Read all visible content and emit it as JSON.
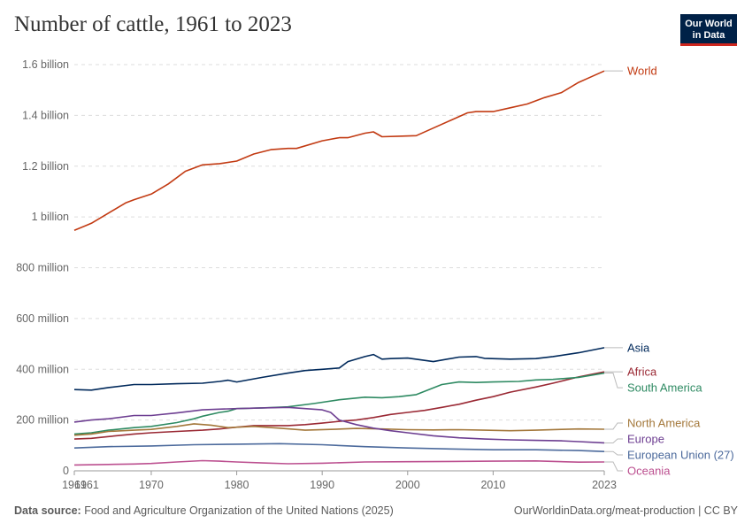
{
  "header": {
    "title": "Number of cattle, 1961 to 2023",
    "logo_line1": "Our World",
    "logo_line2": "in Data"
  },
  "footer": {
    "source_label": "Data source:",
    "source_text": "Food and Agriculture Organization of the United Nations (2025)",
    "link_text": "OurWorldinData.org/meat-production",
    "license_text": "| CC BY"
  },
  "chart_data": {
    "type": "line",
    "title": "Number of cattle, 1961 to 2023",
    "xlabel": "",
    "ylabel": "",
    "xlim": [
      1961,
      2023
    ],
    "ylim": [
      0,
      1600000000
    ],
    "x_ticks": [
      {
        "value": 1961,
        "label": "1961"
      },
      {
        "value": 1970,
        "label": "1970"
      },
      {
        "value": 1980,
        "label": "1980"
      },
      {
        "value": 1990,
        "label": "1990"
      },
      {
        "value": 2000,
        "label": "2000"
      },
      {
        "value": 2010,
        "label": "2010"
      },
      {
        "value": 2023,
        "label": "2023"
      }
    ],
    "x_edge_label": "1961",
    "y_ticks": [
      {
        "value": 0,
        "label": "0"
      },
      {
        "value": 200000000,
        "label": "200 million"
      },
      {
        "value": 400000000,
        "label": "400 million"
      },
      {
        "value": 600000000,
        "label": "600 million"
      },
      {
        "value": 800000000,
        "label": "800 million"
      },
      {
        "value": 1000000000,
        "label": "1 billion"
      },
      {
        "value": 1200000000,
        "label": "1.2 billion"
      },
      {
        "value": 1400000000,
        "label": "1.4 billion"
      },
      {
        "value": 1600000000,
        "label": "1.6 billion"
      }
    ],
    "grid": "horizontal dashed",
    "legend": "right, labels at line ends",
    "series": [
      {
        "name": "World",
        "color": "#c23a12",
        "x": [
          1961,
          1963,
          1965,
          1967,
          1968,
          1970,
          1972,
          1974,
          1976,
          1978,
          1980,
          1982,
          1984,
          1986,
          1987,
          1990,
          1992,
          1993,
          1995,
          1996,
          1997,
          1999,
          2001,
          2003,
          2005,
          2007,
          2008,
          2010,
          2012,
          2014,
          2016,
          2018,
          2020,
          2021,
          2023
        ],
        "y": [
          947,
          975,
          1015,
          1055,
          1068,
          1090,
          1130,
          1180,
          1205,
          1210,
          1220,
          1248,
          1265,
          1270,
          1270,
          1300,
          1312,
          1312,
          1330,
          1335,
          1316,
          1318,
          1320,
          1350,
          1380,
          1410,
          1415,
          1415,
          1430,
          1445,
          1470,
          1490,
          1530,
          1545,
          1575
        ]
      },
      {
        "name": "Asia",
        "color": "#00295b",
        "x": [
          1961,
          1963,
          1965,
          1968,
          1970,
          1973,
          1976,
          1978,
          1979,
          1980,
          1983,
          1986,
          1988,
          1990,
          1992,
          1993,
          1995,
          1996,
          1997,
          1998,
          2000,
          2003,
          2006,
          2008,
          2009,
          2012,
          2015,
          2017,
          2020,
          2023
        ],
        "y": [
          320,
          318,
          328,
          340,
          340,
          343,
          345,
          352,
          357,
          350,
          368,
          385,
          395,
          400,
          405,
          430,
          450,
          458,
          440,
          442,
          444,
          430,
          448,
          450,
          443,
          440,
          442,
          450,
          465,
          485
        ]
      },
      {
        "name": "Africa",
        "color": "#9a2934",
        "x": [
          1961,
          1963,
          1965,
          1968,
          1970,
          1973,
          1976,
          1978,
          1980,
          1982,
          1984,
          1986,
          1988,
          1990,
          1992,
          1994,
          1996,
          1998,
          2000,
          2002,
          2004,
          2006,
          2008,
          2010,
          2012,
          2015,
          2017,
          2020,
          2023
        ],
        "y": [
          125,
          128,
          135,
          145,
          150,
          155,
          160,
          165,
          172,
          178,
          178,
          178,
          182,
          188,
          195,
          200,
          210,
          222,
          230,
          238,
          250,
          262,
          278,
          292,
          310,
          330,
          345,
          370,
          390
        ]
      },
      {
        "name": "South America",
        "color": "#2e8a62",
        "x": [
          1961,
          1963,
          1965,
          1968,
          1970,
          1973,
          1975,
          1976,
          1978,
          1979,
          1980,
          1983,
          1986,
          1989,
          1992,
          1995,
          1997,
          1999,
          2001,
          2004,
          2006,
          2008,
          2010,
          2013,
          2015,
          2017,
          2020,
          2023
        ],
        "y": [
          145,
          150,
          160,
          170,
          175,
          190,
          205,
          215,
          230,
          235,
          245,
          248,
          252,
          265,
          280,
          290,
          288,
          292,
          300,
          340,
          350,
          348,
          350,
          352,
          358,
          360,
          368,
          385
        ]
      },
      {
        "name": "North America",
        "color": "#a3773a",
        "x": [
          1961,
          1963,
          1965,
          1968,
          1970,
          1973,
          1975,
          1977,
          1979,
          1982,
          1985,
          1988,
          1991,
          1994,
          1997,
          2000,
          2003,
          2006,
          2009,
          2012,
          2015,
          2018,
          2020,
          2023
        ],
        "y": [
          140,
          145,
          155,
          160,
          163,
          175,
          185,
          180,
          170,
          175,
          168,
          160,
          163,
          167,
          165,
          162,
          161,
          162,
          160,
          158,
          160,
          163,
          165,
          164
        ]
      },
      {
        "name": "Europe",
        "color": "#6d3e91",
        "x": [
          1961,
          1963,
          1965,
          1968,
          1970,
          1973,
          1976,
          1978,
          1980,
          1983,
          1986,
          1988,
          1990,
          1991,
          1992,
          1994,
          1996,
          1998,
          2000,
          2003,
          2006,
          2009,
          2012,
          2015,
          2018,
          2020,
          2023
        ],
        "y": [
          192,
          200,
          205,
          218,
          218,
          228,
          240,
          243,
          245,
          248,
          250,
          245,
          240,
          230,
          200,
          182,
          168,
          158,
          150,
          138,
          130,
          125,
          122,
          120,
          118,
          115,
          110
        ]
      },
      {
        "name": "European Union (27)",
        "color": "#4c6a9c",
        "x": [
          1961,
          1965,
          1970,
          1975,
          1980,
          1985,
          1990,
          1995,
          2000,
          2005,
          2010,
          2015,
          2020,
          2023
        ],
        "y": [
          90,
          95,
          98,
          103,
          105,
          107,
          103,
          95,
          90,
          86,
          83,
          83,
          80,
          76
        ]
      },
      {
        "name": "Oceania",
        "color": "#bc5090",
        "x": [
          1961,
          1965,
          1968,
          1970,
          1973,
          1976,
          1978,
          1980,
          1983,
          1986,
          1990,
          1995,
          2000,
          2005,
          2010,
          2015,
          2020,
          2023
        ],
        "y": [
          23,
          25,
          27,
          29,
          35,
          40,
          38,
          35,
          31,
          28,
          30,
          35,
          36,
          37,
          38,
          39,
          34,
          35
        ]
      }
    ]
  }
}
